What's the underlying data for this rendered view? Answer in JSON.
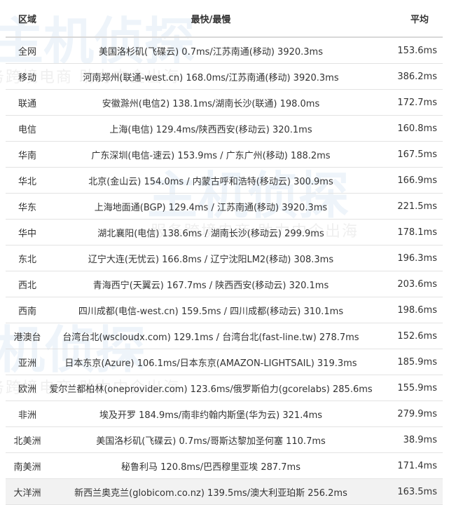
{
  "watermark": {
    "logo": "主机侦探",
    "slogan": "服务跨境电商 助力中企出海"
  },
  "table": {
    "headers": [
      "区域",
      "最快/最慢",
      "平均"
    ],
    "rows": [
      {
        "region": "全网",
        "range": "美国洛杉矶(飞碟云) 0.7ms/江苏南通(移动) 3920.3ms",
        "avg": "153.6ms"
      },
      {
        "region": "移动",
        "range": "河南郑州(联通-west.cn) 168.0ms/江苏南通(移动) 3920.3ms",
        "avg": "386.2ms"
      },
      {
        "region": "联通",
        "range": "安徽滁州(电信2) 138.1ms/湖南长沙(联通) 198.0ms",
        "avg": "172.7ms"
      },
      {
        "region": "电信",
        "range": "上海(电信) 129.4ms/陕西西安(移动云) 320.1ms",
        "avg": "160.8ms"
      },
      {
        "region": "华南",
        "range": "广东深圳(电信-速云) 153.9ms / 广东广州(移动) 188.2ms",
        "avg": "167.5ms"
      },
      {
        "region": "华北",
        "range": "北京(金山云) 154.0ms / 内蒙古呼和浩特(移动云) 300.9ms",
        "avg": "166.9ms"
      },
      {
        "region": "华东",
        "range": "上海地面通(BGP) 129.4ms / 江苏南通(移动) 3920.3ms",
        "avg": "221.5ms"
      },
      {
        "region": "华中",
        "range": "湖北襄阳(电信) 138.6ms / 湖南长沙(移动云) 299.9ms",
        "avg": "178.1ms"
      },
      {
        "region": "东北",
        "range": "辽宁大连(无忧云) 166.8ms / 辽宁沈阳LM2(移动) 308.3ms",
        "avg": "196.3ms"
      },
      {
        "region": "西北",
        "range": "青海西宁(天翼云) 167.7ms / 陕西西安(移动云) 320.1ms",
        "avg": "203.6ms"
      },
      {
        "region": "西南",
        "range": "四川成都(电信-west.cn) 159.5ms / 四川成都(移动云) 310.1ms",
        "avg": "198.6ms"
      },
      {
        "region": "港澳台",
        "range": "台湾台北(wscloudx.com) 129.1ms / 台湾台北(fast-line.tw) 278.7ms",
        "avg": "152.6ms"
      },
      {
        "region": "亚洲",
        "range": "日本东京(Azure) 106.1ms/日本东京(AMAZON-LIGHTSAIL) 319.3ms",
        "avg": "185.9ms"
      },
      {
        "region": "欧洲",
        "range": "爱尔兰都柏林(oneprovider.com) 123.6ms/俄罗斯伯力(gcorelabs) 285.6ms",
        "avg": "155.9ms"
      },
      {
        "region": "非洲",
        "range": "埃及开罗 184.9ms/南非约翰内斯堡(华为云) 321.4ms",
        "avg": "279.9ms"
      },
      {
        "region": "北美洲",
        "range": "美国洛杉矶(飞碟云) 0.7ms/哥斯达黎加圣何塞 110.7ms",
        "avg": "38.9ms"
      },
      {
        "region": "南美洲",
        "range": "秘鲁利马 120.8ms/巴西穆里亚埃 287.7ms",
        "avg": "171.4ms"
      },
      {
        "region": "大洋洲",
        "range": "新西兰奥克兰(globicom.co.nz) 139.5ms/澳大利亚珀斯 256.2ms",
        "avg": "163.5ms"
      }
    ]
  }
}
